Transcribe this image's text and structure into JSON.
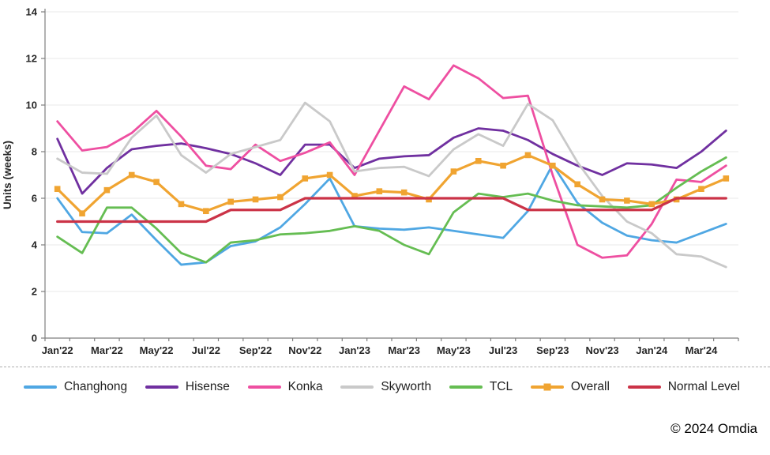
{
  "chart_data": {
    "type": "line",
    "title": "",
    "xlabel": "",
    "ylabel": "Units (weeks)",
    "ylim": [
      0,
      14
    ],
    "ytick_step": 2,
    "grid": true,
    "legend_position": "bottom",
    "colors": {
      "grid": "#E8E8E8",
      "axis": "#7F7F7F",
      "text": "#262626"
    },
    "categories": [
      "Jan'22",
      "Feb'22",
      "Mar'22",
      "Apr'22",
      "May'22",
      "Jun'22",
      "Jul'22",
      "Aug'22",
      "Sep'22",
      "Oct'22",
      "Nov'22",
      "Dec'22",
      "Jan'23",
      "Feb'23",
      "Mar'23",
      "Apr'23",
      "May'23",
      "Jun'23",
      "Jul'23",
      "Aug'23",
      "Sep'23",
      "Oct'23",
      "Nov'23",
      "Dec'23",
      "Jan'24",
      "Feb'24",
      "Mar'24",
      "Apr'24"
    ],
    "x_tick_labels": [
      "Jan'22",
      "Mar'22",
      "May'22",
      "Jul'22",
      "Sep'22",
      "Nov'22",
      "Jan'23",
      "Mar'23",
      "May'23",
      "Jul'23",
      "Sep'23",
      "Nov'23",
      "Jan'24",
      "Mar'24"
    ],
    "series": [
      {
        "name": "Changhong",
        "color": "#4FA7E3",
        "marker": "none",
        "values": [
          6.0,
          4.55,
          4.5,
          5.3,
          4.2,
          3.15,
          3.25,
          3.95,
          4.15,
          4.75,
          5.75,
          6.85,
          4.8,
          4.7,
          4.65,
          4.75,
          4.6,
          4.45,
          4.3,
          5.45,
          7.45,
          5.8,
          4.95,
          4.4,
          4.2,
          4.1,
          4.5,
          4.9
        ]
      },
      {
        "name": "Hisense",
        "color": "#7030A0",
        "marker": "none",
        "values": [
          8.55,
          6.2,
          7.3,
          8.1,
          8.25,
          8.35,
          8.15,
          7.9,
          7.5,
          7.0,
          8.3,
          8.3,
          7.3,
          7.7,
          7.8,
          7.85,
          8.6,
          9.0,
          8.9,
          8.5,
          7.9,
          7.4,
          7.0,
          7.5,
          7.45,
          7.3,
          8.0,
          8.9
        ]
      },
      {
        "name": "Konka",
        "color": "#EE4FA1",
        "marker": "none",
        "values": [
          9.3,
          8.05,
          8.2,
          8.8,
          9.75,
          8.65,
          7.4,
          7.25,
          8.3,
          7.6,
          7.95,
          8.4,
          7.0,
          8.9,
          10.8,
          10.25,
          11.7,
          11.15,
          10.3,
          10.4,
          7.0,
          4.0,
          3.45,
          3.55,
          4.9,
          6.8,
          6.7,
          7.4
        ]
      },
      {
        "name": "Skyworth",
        "color": "#C9C9C9",
        "marker": "none",
        "values": [
          7.7,
          7.1,
          7.05,
          8.6,
          9.55,
          7.85,
          7.1,
          7.9,
          8.2,
          8.5,
          10.1,
          9.3,
          7.15,
          7.3,
          7.35,
          6.95,
          8.1,
          8.75,
          8.25,
          10.05,
          9.35,
          7.55,
          6.1,
          5.0,
          4.5,
          3.6,
          3.5,
          3.05
        ]
      },
      {
        "name": "TCL",
        "color": "#65BD52",
        "marker": "none",
        "values": [
          4.35,
          3.65,
          5.6,
          5.6,
          4.7,
          3.65,
          3.25,
          4.1,
          4.2,
          4.45,
          4.5,
          4.6,
          4.8,
          4.6,
          4.0,
          3.6,
          5.4,
          6.2,
          6.05,
          6.2,
          5.9,
          5.7,
          5.65,
          5.6,
          5.7,
          6.45,
          7.15,
          7.75
        ]
      },
      {
        "name": "Overall",
        "color": "#F0A431",
        "marker": "square",
        "values": [
          6.4,
          5.35,
          6.35,
          7.0,
          6.7,
          5.75,
          5.45,
          5.85,
          5.95,
          6.05,
          6.85,
          7.0,
          6.1,
          6.3,
          6.25,
          5.95,
          7.15,
          7.6,
          7.4,
          7.85,
          7.4,
          6.6,
          5.95,
          5.9,
          5.75,
          5.95,
          6.4,
          6.85
        ]
      },
      {
        "name": "Normal Level",
        "color": "#CB3347",
        "marker": "none",
        "values": [
          5.0,
          5.0,
          5.0,
          5.0,
          5.0,
          5.0,
          5.0,
          5.5,
          5.5,
          5.5,
          6.0,
          6.0,
          6.0,
          6.0,
          6.0,
          6.0,
          6.0,
          6.0,
          6.0,
          5.5,
          5.5,
          5.5,
          5.5,
          5.5,
          5.5,
          6.0,
          6.0,
          6.0
        ]
      }
    ]
  },
  "legend": {
    "items": [
      "Changhong",
      "Hisense",
      "Konka",
      "Skyworth",
      "TCL",
      "Overall",
      "Normal Level"
    ]
  },
  "footer": {
    "copyright": "© 2024 Omdia"
  }
}
